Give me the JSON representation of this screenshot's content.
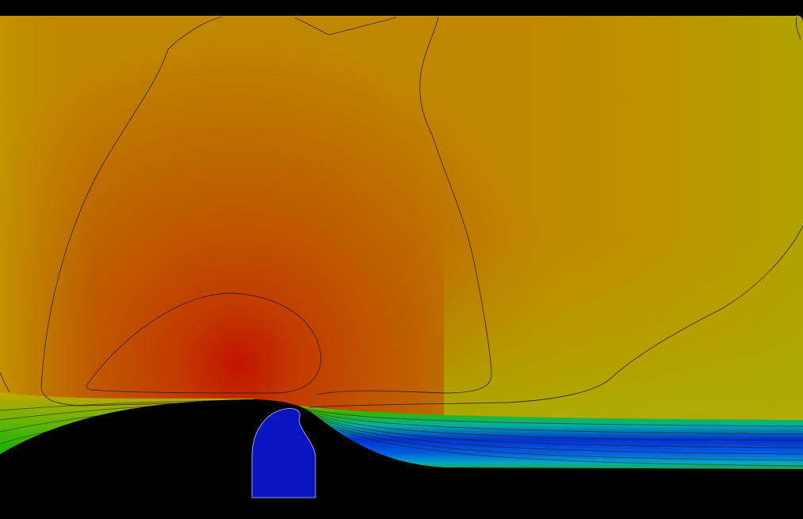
{
  "figure": {
    "type": "cfd-contour-plot",
    "colormap": "jet",
    "background_color": "#000000",
    "field_colors": {
      "max_core": "#c01a00",
      "high": "#c04a00",
      "mid_high": "#bf6a00",
      "mid": "#c08a00",
      "mid_low": "#b8a000",
      "low": "#a8b000",
      "lower": "#2ab400",
      "lowest": "#0014b8"
    },
    "contour_line_color": "#2a1a0a",
    "solid_body_color": "#000000",
    "jet_inlet_color": "#0a14c0"
  }
}
